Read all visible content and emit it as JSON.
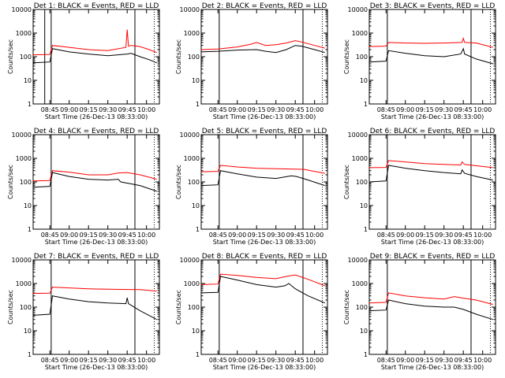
{
  "chart_data": [
    {
      "type": "line",
      "title": "Det 1: BLACK = Events, RED = LLD",
      "xlabel": "Start Time (26-Dec-13 08:33:00)",
      "ylabel": "Counts/sec",
      "yscale": "log",
      "ylim": [
        1,
        10000
      ],
      "xlim": [
        "08:32",
        "10:10"
      ],
      "xticks": [
        "08:45",
        "09:00",
        "09:15",
        "09:30",
        "09:45",
        "10:00"
      ],
      "yticks": [
        "1",
        "10",
        "100",
        "1000",
        "10000"
      ],
      "vlines_solid": [
        "08:41",
        "08:46",
        "09:51"
      ],
      "vlines_dotted": [
        "10:06"
      ],
      "series": [
        {
          "color": "#ff0000",
          "x": [
            "08:32",
            "08:45",
            "08:47",
            "09:00",
            "09:15",
            "09:30",
            "09:44",
            "09:45",
            "09:46",
            "09:48",
            "09:55",
            "10:02",
            "10:08"
          ],
          "y": [
            120,
            125,
            300,
            250,
            200,
            180,
            250,
            1400,
            280,
            300,
            270,
            200,
            150
          ]
        },
        {
          "color": "#000000",
          "x": [
            "08:32",
            "08:45",
            "08:47",
            "09:00",
            "09:15",
            "09:30",
            "09:45",
            "09:48",
            "09:55",
            "10:02",
            "10:08"
          ],
          "y": [
            55,
            60,
            220,
            160,
            130,
            110,
            130,
            140,
            100,
            75,
            55
          ]
        }
      ]
    },
    {
      "type": "line",
      "title": "Det 2: BLACK = Events, RED = LLD",
      "xlabel": "Start Time (26-Dec-13 08:33:00)",
      "ylabel": "Counts/sec",
      "yscale": "log",
      "ylim": [
        1,
        10000
      ],
      "xlim": [
        "08:32",
        "10:10"
      ],
      "xticks": [
        "08:45",
        "09:00",
        "09:15",
        "09:30",
        "09:45",
        "10:00"
      ],
      "yticks": [
        "1",
        "10",
        "100",
        "1000",
        "10000"
      ],
      "vlines_solid": [
        "08:46",
        "09:51"
      ],
      "vlines_dotted": [
        "10:06"
      ],
      "series": [
        {
          "color": "#ff0000",
          "x": [
            "08:32",
            "08:45",
            "09:00",
            "09:10",
            "09:15",
            "09:22",
            "09:30",
            "09:38",
            "09:45",
            "09:50",
            "10:00",
            "10:08"
          ],
          "y": [
            200,
            210,
            260,
            330,
            400,
            300,
            320,
            380,
            480,
            420,
            300,
            230
          ]
        },
        {
          "color": "#000000",
          "x": [
            "08:32",
            "08:45",
            "09:00",
            "09:15",
            "09:22",
            "09:30",
            "09:38",
            "09:45",
            "09:50",
            "10:00",
            "10:08"
          ],
          "y": [
            160,
            170,
            190,
            200,
            170,
            150,
            200,
            300,
            280,
            200,
            150
          ]
        }
      ]
    },
    {
      "type": "line",
      "title": "Det 3: BLACK = Events, RED = LLD",
      "xlabel": "Start Time (26-Dec-13 08:33:00)",
      "ylabel": "Counts/sec",
      "yscale": "log",
      "ylim": [
        1,
        10000
      ],
      "xlim": [
        "08:32",
        "10:10"
      ],
      "xticks": [
        "08:45",
        "09:00",
        "09:15",
        "09:30",
        "09:45",
        "10:00"
      ],
      "yticks": [
        "1",
        "10",
        "100",
        "1000",
        "10000"
      ],
      "vlines_solid": [
        "08:46",
        "09:51"
      ],
      "vlines_dotted": [
        "10:06"
      ],
      "series": [
        {
          "color": "#ff0000",
          "x": [
            "08:32",
            "08:45",
            "08:47",
            "09:00",
            "09:15",
            "09:30",
            "09:44",
            "09:45",
            "09:46",
            "09:55",
            "10:08"
          ],
          "y": [
            270,
            280,
            400,
            380,
            370,
            380,
            400,
            600,
            400,
            380,
            250
          ]
        },
        {
          "color": "#000000",
          "x": [
            "08:32",
            "08:45",
            "08:47",
            "09:00",
            "09:15",
            "09:30",
            "09:43",
            "09:45",
            "09:46",
            "09:55",
            "10:08"
          ],
          "y": [
            60,
            65,
            180,
            140,
            110,
            100,
            130,
            220,
            130,
            80,
            50
          ]
        }
      ]
    },
    {
      "type": "line",
      "title": "Det 4: BLACK = Events, RED = LLD",
      "xlabel": "Start Time (26-Dec-13 08:33:00)",
      "ylabel": "Counts/sec",
      "yscale": "log",
      "ylim": [
        1,
        10000
      ],
      "xlim": [
        "08:32",
        "10:10"
      ],
      "xticks": [
        "08:45",
        "09:00",
        "09:15",
        "09:30",
        "09:45",
        "10:00"
      ],
      "yticks": [
        "1",
        "10",
        "100",
        "1000",
        "10000"
      ],
      "vlines_solid": [
        "08:46",
        "09:51"
      ],
      "vlines_dotted": [
        "10:06"
      ],
      "series": [
        {
          "color": "#ff0000",
          "x": [
            "08:32",
            "08:45",
            "08:47",
            "09:00",
            "09:15",
            "09:30",
            "09:38",
            "09:45",
            "09:55",
            "10:08"
          ],
          "y": [
            110,
            115,
            300,
            260,
            200,
            200,
            240,
            250,
            200,
            130
          ]
        },
        {
          "color": "#000000",
          "x": [
            "08:32",
            "08:45",
            "08:47",
            "09:00",
            "09:15",
            "09:30",
            "09:38",
            "09:40",
            "09:55",
            "10:08"
          ],
          "y": [
            60,
            65,
            250,
            170,
            130,
            120,
            130,
            100,
            70,
            40
          ]
        }
      ]
    },
    {
      "type": "line",
      "title": "Det 5: BLACK = Events, RED = LLD",
      "xlabel": "Start Time (26-Dec-13 08:33:00)",
      "ylabel": "Counts/sec",
      "yscale": "log",
      "ylim": [
        1,
        10000
      ],
      "xlim": [
        "08:32",
        "10:10"
      ],
      "xticks": [
        "08:45",
        "09:00",
        "09:15",
        "09:30",
        "09:45",
        "10:00"
      ],
      "yticks": [
        "1",
        "10",
        "100",
        "1000",
        "10000"
      ],
      "vlines_solid": [
        "08:46",
        "09:51"
      ],
      "vlines_dotted": [
        "10:06"
      ],
      "series": [
        {
          "color": "#ff0000",
          "x": [
            "08:32",
            "08:45",
            "08:47",
            "09:00",
            "09:15",
            "09:30",
            "09:45",
            "09:52",
            "10:08"
          ],
          "y": [
            270,
            280,
            500,
            430,
            380,
            360,
            350,
            340,
            230
          ]
        },
        {
          "color": "#000000",
          "x": [
            "08:32",
            "08:45",
            "08:47",
            "09:00",
            "09:15",
            "09:30",
            "09:42",
            "09:46",
            "09:55",
            "10:08"
          ],
          "y": [
            70,
            75,
            300,
            220,
            160,
            140,
            180,
            170,
            120,
            70
          ]
        }
      ]
    },
    {
      "type": "line",
      "title": "Det 6: BLACK = Events, RED = LLD",
      "xlabel": "Start Time (26-Dec-13 08:33:00)",
      "ylabel": "Counts/sec",
      "yscale": "log",
      "ylim": [
        1,
        10000
      ],
      "xlim": [
        "08:32",
        "10:10"
      ],
      "xticks": [
        "08:45",
        "09:00",
        "09:15",
        "09:30",
        "09:45",
        "10:00"
      ],
      "yticks": [
        "1",
        "10",
        "100",
        "1000",
        "10000"
      ],
      "vlines_solid": [
        "08:46",
        "09:51"
      ],
      "vlines_dotted": [
        "10:06"
      ],
      "series": [
        {
          "color": "#ff0000",
          "x": [
            "08:32",
            "08:45",
            "08:47",
            "09:00",
            "09:15",
            "09:30",
            "09:43",
            "09:44",
            "09:46",
            "10:08"
          ],
          "y": [
            400,
            410,
            800,
            700,
            600,
            550,
            520,
            700,
            550,
            400
          ]
        },
        {
          "color": "#000000",
          "x": [
            "08:32",
            "08:45",
            "08:47",
            "09:00",
            "09:15",
            "09:30",
            "09:43",
            "09:44",
            "09:46",
            "09:55",
            "10:08"
          ],
          "y": [
            100,
            110,
            500,
            380,
            300,
            250,
            220,
            320,
            230,
            170,
            120
          ]
        }
      ]
    },
    {
      "type": "line",
      "title": "Det 7: BLACK = Events, RED = LLD",
      "xlabel": "Start Time (26-Dec-13 08:33:00)",
      "ylabel": "Counts/sec",
      "yscale": "log",
      "ylim": [
        1,
        10000
      ],
      "xlim": [
        "08:32",
        "10:10"
      ],
      "xticks": [
        "08:45",
        "09:00",
        "09:15",
        "09:30",
        "09:45",
        "10:00"
      ],
      "yticks": [
        "1",
        "10",
        "100",
        "1000",
        "10000"
      ],
      "vlines_solid": [
        "08:46",
        "09:51"
      ],
      "vlines_dotted": [
        "10:06"
      ],
      "series": [
        {
          "color": "#ff0000",
          "x": [
            "08:32",
            "08:45",
            "08:47",
            "09:00",
            "09:15",
            "09:30",
            "09:45",
            "09:55",
            "10:08"
          ],
          "y": [
            380,
            390,
            700,
            650,
            600,
            570,
            560,
            550,
            480
          ]
        },
        {
          "color": "#000000",
          "x": [
            "08:32",
            "08:45",
            "08:47",
            "09:00",
            "09:15",
            "09:30",
            "09:44",
            "09:45",
            "09:46",
            "09:55",
            "10:08"
          ],
          "y": [
            45,
            50,
            300,
            220,
            170,
            150,
            140,
            250,
            140,
            70,
            30
          ]
        }
      ]
    },
    {
      "type": "line",
      "title": "Det 8: BLACK = Events, RED = LLD",
      "xlabel": "Start Time (26-Dec-13 08:33:00)",
      "ylabel": "Counts/sec",
      "yscale": "log",
      "ylim": [
        1,
        10000
      ],
      "xlim": [
        "08:32",
        "10:10"
      ],
      "xticks": [
        "08:45",
        "09:00",
        "09:15",
        "09:30",
        "09:45",
        "10:00"
      ],
      "yticks": [
        "1",
        "10",
        "100",
        "1000",
        "10000"
      ],
      "vlines_solid": [
        "08:46",
        "09:51"
      ],
      "vlines_dotted": [
        "10:06"
      ],
      "series": [
        {
          "color": "#ff0000",
          "x": [
            "08:32",
            "08:45",
            "08:47",
            "09:00",
            "09:15",
            "09:30",
            "09:38",
            "09:45",
            "09:55",
            "10:08"
          ],
          "y": [
            900,
            950,
            2500,
            2200,
            1800,
            1600,
            2000,
            2300,
            1500,
            800
          ]
        },
        {
          "color": "#000000",
          "x": [
            "08:32",
            "08:45",
            "08:47",
            "09:00",
            "09:15",
            "09:30",
            "09:37",
            "09:40",
            "09:45",
            "09:55",
            "10:08"
          ],
          "y": [
            400,
            420,
            2000,
            1400,
            900,
            700,
            800,
            1000,
            600,
            300,
            150
          ]
        }
      ]
    },
    {
      "type": "line",
      "title": "Det 9: BLACK = Events, RED = LLD",
      "xlabel": "Start Time (26-Dec-13 08:33:00)",
      "ylabel": "Counts/sec",
      "yscale": "log",
      "ylim": [
        1,
        10000
      ],
      "xlim": [
        "08:32",
        "10:10"
      ],
      "xticks": [
        "08:45",
        "09:00",
        "09:15",
        "09:30",
        "09:45",
        "10:00"
      ],
      "yticks": [
        "1",
        "10",
        "100",
        "1000",
        "10000"
      ],
      "vlines_solid": [
        "08:46",
        "09:51"
      ],
      "vlines_dotted": [
        "10:06"
      ],
      "series": [
        {
          "color": "#ff0000",
          "x": [
            "08:32",
            "08:45",
            "08:47",
            "09:00",
            "09:15",
            "09:30",
            "09:38",
            "09:45",
            "09:55",
            "10:08"
          ],
          "y": [
            150,
            160,
            400,
            300,
            250,
            220,
            280,
            240,
            200,
            130
          ]
        },
        {
          "color": "#000000",
          "x": [
            "08:32",
            "08:45",
            "08:47",
            "09:00",
            "09:15",
            "09:30",
            "09:38",
            "09:45",
            "09:55",
            "10:08"
          ],
          "y": [
            70,
            75,
            200,
            140,
            110,
            100,
            100,
            80,
            50,
            30
          ]
        }
      ]
    }
  ]
}
